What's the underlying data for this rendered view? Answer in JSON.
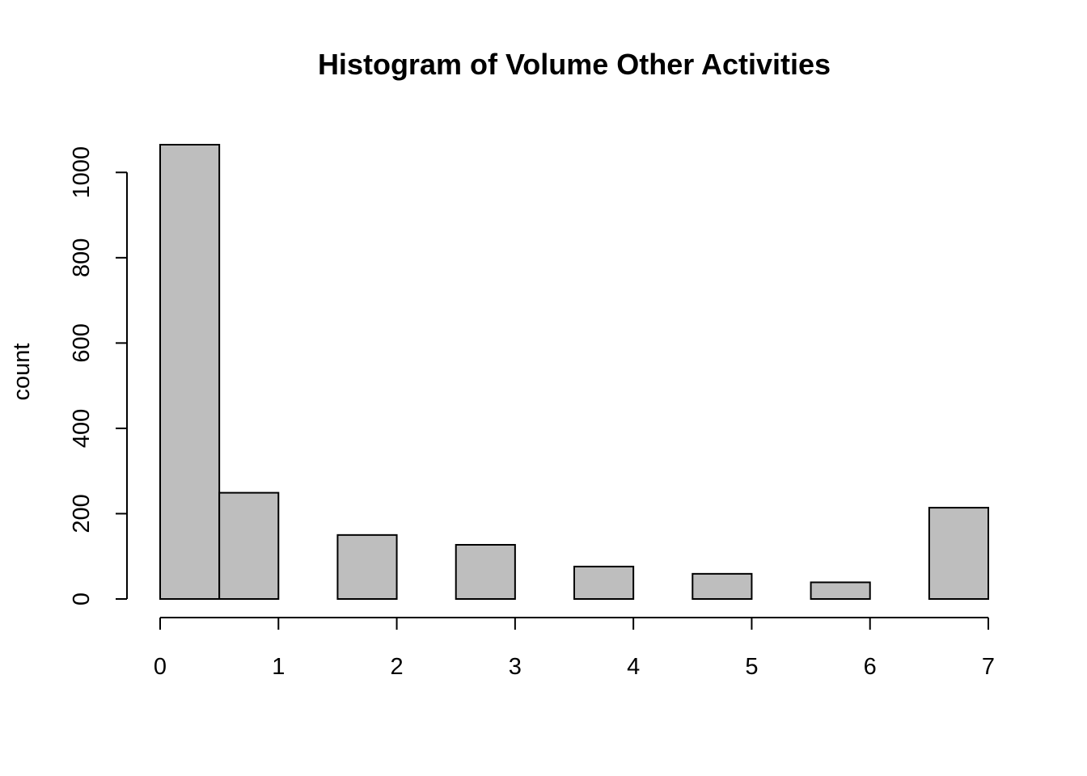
{
  "chart_data": {
    "type": "bar",
    "title": "Histogram of Volume Other Activities",
    "xlabel": "",
    "ylabel": "count",
    "x_ticks": [
      0,
      1,
      2,
      3,
      4,
      5,
      6,
      7
    ],
    "y_ticks": [
      0,
      200,
      400,
      600,
      800,
      1000
    ],
    "xlim": [
      0,
      7
    ],
    "ylim": [
      0,
      1065
    ],
    "bar_width": 0.5,
    "bars": [
      {
        "x_start": 0.0,
        "value": 1065
      },
      {
        "x_start": 0.5,
        "value": 249
      },
      {
        "x_start": 1.5,
        "value": 150
      },
      {
        "x_start": 2.5,
        "value": 127
      },
      {
        "x_start": 3.5,
        "value": 76
      },
      {
        "x_start": 4.5,
        "value": 59
      },
      {
        "x_start": 5.5,
        "value": 39
      },
      {
        "x_start": 6.5,
        "value": 214
      }
    ],
    "bar_color": "#bebebe",
    "grid": false,
    "legend": "none"
  }
}
